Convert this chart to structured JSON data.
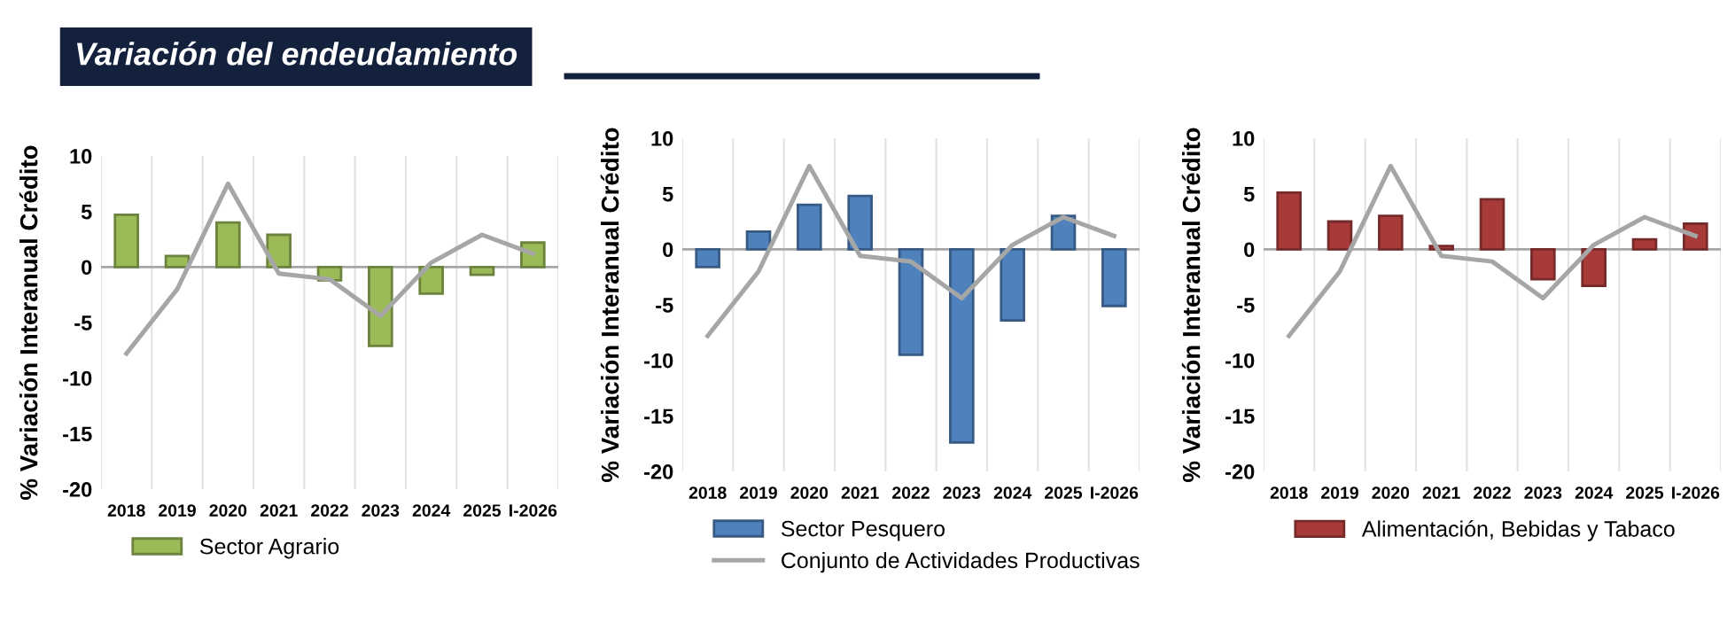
{
  "chart_data": [
    {
      "type": "bar",
      "title": "Variación del endeudamiento",
      "ylabel": "% Variación Interanual Crédito",
      "categories": [
        "2018",
        "2019",
        "2020",
        "2021",
        "2022",
        "2023",
        "2024",
        "2025",
        "I-2026"
      ],
      "ylim": [
        -20,
        10
      ],
      "yticks": [
        -20,
        -15,
        -10,
        -5,
        0,
        5,
        10
      ],
      "grid": "x",
      "legend": "bottom",
      "series": [
        {
          "name": "Sector Agrario",
          "color": "#9bbb59",
          "values": [
            4.7,
            1.0,
            4.0,
            2.9,
            -1.2,
            -7.1,
            -2.4,
            -0.7,
            2.2
          ]
        },
        {
          "type": "line",
          "color": "#a6a6a6",
          "values": [
            -7.8,
            -2.0,
            7.5,
            -0.6,
            -1.1,
            -4.4,
            0.4,
            2.9,
            1.2
          ]
        }
      ]
    },
    {
      "type": "bar",
      "ylabel": "% Variación Interanual Crédito",
      "categories": [
        "2018",
        "2019",
        "2020",
        "2021",
        "2022",
        "2023",
        "2024",
        "2025",
        "I-2026"
      ],
      "ylim": [
        -20,
        10
      ],
      "yticks": [
        -20,
        -15,
        -10,
        -5,
        0,
        5,
        10
      ],
      "grid": "x",
      "legend": "bottom",
      "series": [
        {
          "name": "Sector Pesquero",
          "color": "#4f81bd",
          "values": [
            -1.6,
            1.6,
            4.0,
            4.8,
            -9.5,
            -17.4,
            -6.4,
            3.0,
            -5.1
          ]
        },
        {
          "type": "line",
          "name": "Conjunto de Actividades Productivas",
          "color": "#a6a6a6",
          "values": [
            -7.8,
            -2.0,
            7.5,
            -0.6,
            -1.1,
            -4.4,
            0.4,
            2.9,
            1.2
          ]
        }
      ]
    },
    {
      "type": "bar",
      "ylabel": "% Variación Interanual Crédito",
      "categories": [
        "2018",
        "2019",
        "2020",
        "2021",
        "2022",
        "2023",
        "2024",
        "2025",
        "I-2026"
      ],
      "ylim": [
        -20,
        10
      ],
      "yticks": [
        -20,
        -15,
        -10,
        -5,
        0,
        5,
        10
      ],
      "grid": "x",
      "legend": "bottom",
      "series": [
        {
          "name": "Alimentación, Bebidas y Tabaco",
          "color": "#a93a3a",
          "values": [
            5.1,
            2.5,
            3.0,
            0.3,
            4.5,
            -2.7,
            -3.3,
            0.9,
            2.3
          ]
        },
        {
          "type": "line",
          "color": "#a6a6a6",
          "values": [
            -7.8,
            -2.0,
            7.5,
            -0.6,
            -1.1,
            -4.4,
            0.4,
            2.9,
            1.2
          ]
        }
      ]
    }
  ]
}
